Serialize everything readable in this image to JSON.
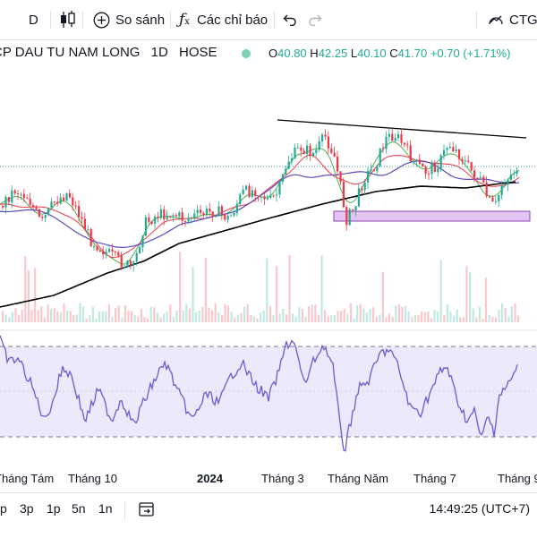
{
  "toolbar": {
    "interval": "D",
    "compare_label": "So sánh",
    "indicators_label": "Các chỉ báo",
    "symbol_chip": "CTG"
  },
  "legend": {
    "name": "CP DAU TU NAM LONG",
    "interval": "1D",
    "exchange": "HOSE",
    "open_label": "O",
    "open": "40.80",
    "high_label": "H",
    "high": "42.25",
    "low_label": "L",
    "low": "40.10",
    "close_label": "C",
    "close": "41.70",
    "change": "+0.70 (+1.71%)"
  },
  "time_axis": {
    "labels": [
      "Tháng Tám",
      "Tháng 10",
      "2024",
      "Tháng 3",
      "Tháng Năm",
      "Tháng 7",
      "Tháng 9"
    ]
  },
  "bottom_bar": {
    "ranges": [
      "p",
      "3p",
      "1p",
      "5n",
      "1n"
    ],
    "clock": "14:49:25 (UTC+7)"
  },
  "colors": {
    "up": "#22ab94",
    "down": "#f23645",
    "ma_fast": "#4caf50",
    "ma_mid": "#f23645",
    "ma_slow": "#5b4bbd",
    "ma_long": "#000000",
    "rsi_line": "#6a5acd",
    "rsi_band": "#ede9fb",
    "zone": "#e3c4f2"
  }
}
